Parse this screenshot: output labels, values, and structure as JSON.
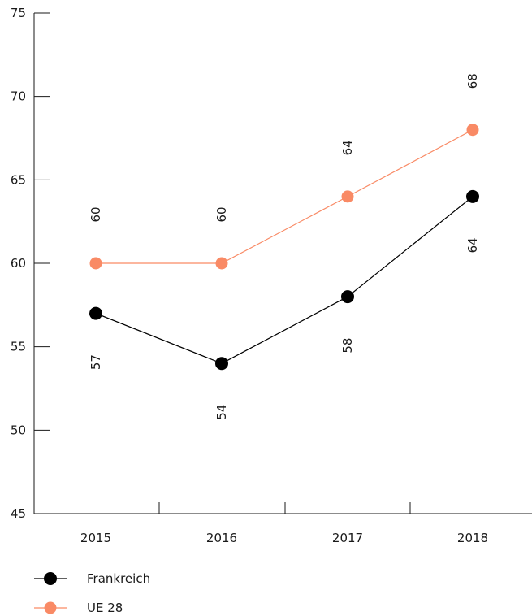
{
  "chart_data": {
    "type": "line",
    "x": [
      "2015",
      "2016",
      "2017",
      "2018"
    ],
    "ylim": [
      45,
      75
    ],
    "yticks": [
      45,
      50,
      55,
      60,
      65,
      70,
      75
    ],
    "grid": false,
    "legend_position": "bottom-left",
    "series": [
      {
        "name": "Frankreich",
        "values": [
          57,
          54,
          58,
          64
        ],
        "color": "#000000",
        "label_position": "below"
      },
      {
        "name": "UE 28",
        "values": [
          60,
          60,
          64,
          68
        ],
        "color": "#f98a65",
        "label_position": "above"
      }
    ]
  }
}
